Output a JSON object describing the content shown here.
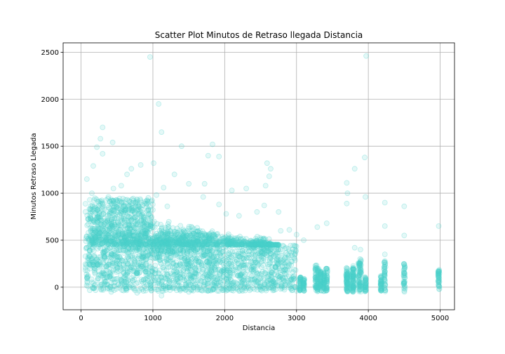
{
  "chart_data": {
    "type": "scatter",
    "title": "Scatter Plot Minutos de Retraso llegada Distancia",
    "xlabel": "Distancia",
    "ylabel": "Minutos Retraso Llegada",
    "xlim": [
      -250,
      5200
    ],
    "ylim": [
      -240,
      2600
    ],
    "x_ticks": [
      0,
      1000,
      2000,
      3000,
      4000,
      5000
    ],
    "x_tick_labels": [
      "0",
      "1000",
      "2000",
      "3000",
      "4000",
      "5000"
    ],
    "y_ticks": [
      0,
      500,
      1000,
      1500,
      2000,
      2500
    ],
    "y_tick_labels": [
      "0",
      "500",
      "1000",
      "1500",
      "2000",
      "2500"
    ],
    "grid": true,
    "marker_color": "#48d1cc",
    "marker_alpha": 0.15,
    "points": [
      [
        960,
        2450
      ],
      [
        3970,
        2460
      ],
      [
        1080,
        1950
      ],
      [
        1120,
        1650
      ],
      [
        300,
        1700
      ],
      [
        440,
        1540
      ],
      [
        270,
        1580
      ],
      [
        220,
        1490
      ],
      [
        300,
        1420
      ],
      [
        1830,
        1520
      ],
      [
        1400,
        1500
      ],
      [
        1920,
        1390
      ],
      [
        1770,
        1400
      ],
      [
        2590,
        1320
      ],
      [
        2640,
        1260
      ],
      [
        3950,
        1380
      ],
      [
        3810,
        1260
      ],
      [
        2620,
        1180
      ],
      [
        2100,
        1030
      ],
      [
        1720,
        1100
      ],
      [
        1010,
        1320
      ],
      [
        830,
        1300
      ],
      [
        700,
        1260
      ],
      [
        640,
        1200
      ],
      [
        2570,
        1080
      ],
      [
        2300,
        1050
      ],
      [
        3700,
        1110
      ],
      [
        3710,
        1000
      ],
      [
        3700,
        890
      ],
      [
        3960,
        960
      ],
      [
        3420,
        680
      ],
      [
        3290,
        640
      ],
      [
        4230,
        900
      ],
      [
        4230,
        650
      ],
      [
        4500,
        860
      ],
      [
        4980,
        650
      ],
      [
        4500,
        550
      ],
      [
        3890,
        400
      ],
      [
        3810,
        420
      ],
      [
        4230,
        350
      ],
      [
        2750,
        800
      ],
      [
        2780,
        600
      ],
      [
        2550,
        870
      ],
      [
        2450,
        800
      ],
      [
        1920,
        880
      ],
      [
        2020,
        780
      ],
      [
        2200,
        760
      ],
      [
        1700,
        960
      ],
      [
        1500,
        1100
      ],
      [
        1300,
        1200
      ],
      [
        1150,
        1060
      ],
      [
        1200,
        860
      ],
      [
        1050,
        980
      ],
      [
        560,
        1080
      ],
      [
        450,
        1050
      ],
      [
        380,
        960
      ],
      [
        170,
        1290
      ],
      [
        80,
        1150
      ],
      [
        150,
        1000
      ],
      [
        3100,
        500
      ],
      [
        3000,
        560
      ],
      [
        2900,
        610
      ],
      [
        1120,
        -90
      ],
      [
        780,
        -60
      ],
      [
        1500,
        -50
      ],
      [
        2200,
        -40
      ],
      [
        420,
        -50
      ]
    ],
    "dense_clusters": [
      {
        "x": [
          60,
          3000
        ],
        "y": [
          -40,
          450
        ]
      },
      {
        "x": [
          120,
          1000
        ],
        "y": [
          450,
          950
        ]
      },
      {
        "x": [
          1000,
          1800
        ],
        "y": [
          350,
          600
        ]
      },
      {
        "x": [
          2400,
          2620
        ],
        "y": [
          350,
          550
        ]
      }
    ],
    "strips": [
      {
        "x": 3050,
        "y": [
          -40,
          110
        ]
      },
      {
        "x": 3100,
        "y": [
          -40,
          90
        ]
      },
      {
        "x": 3270,
        "y": [
          -50,
          250
        ]
      },
      {
        "x": 3300,
        "y": [
          -50,
          200
        ]
      },
      {
        "x": 3340,
        "y": [
          -50,
          170
        ]
      },
      {
        "x": 3380,
        "y": [
          -50,
          160
        ]
      },
      {
        "x": 3420,
        "y": [
          -50,
          200
        ]
      },
      {
        "x": 3700,
        "y": [
          -50,
          220
        ]
      },
      {
        "x": 3710,
        "y": [
          -50,
          180
        ]
      },
      {
        "x": 3780,
        "y": [
          -50,
          230
        ]
      },
      {
        "x": 3790,
        "y": [
          -50,
          200
        ]
      },
      {
        "x": 3870,
        "y": [
          -50,
          260
        ]
      },
      {
        "x": 3890,
        "y": [
          -50,
          300
        ]
      },
      {
        "x": 3960,
        "y": [
          -50,
          120
        ]
      },
      {
        "x": 4180,
        "y": [
          -50,
          120
        ]
      },
      {
        "x": 4230,
        "y": [
          -50,
          300
        ]
      },
      {
        "x": 4500,
        "y": [
          -50,
          250
        ]
      },
      {
        "x": 4980,
        "y": [
          -40,
          200
        ]
      }
    ]
  }
}
